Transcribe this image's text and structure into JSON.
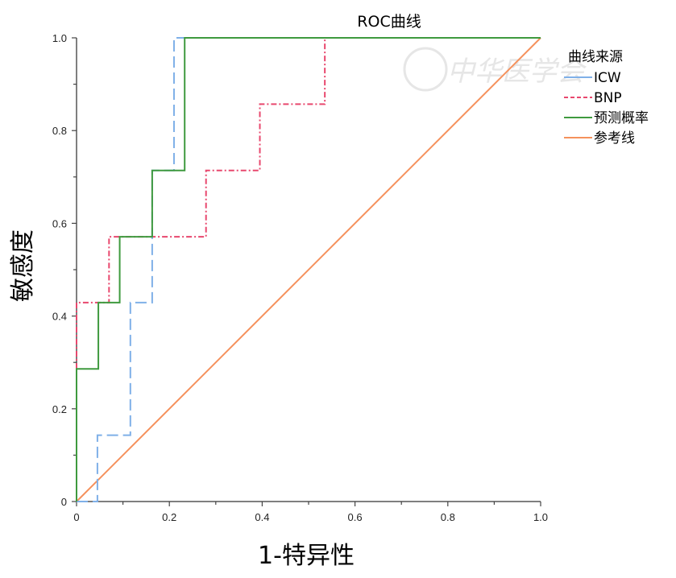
{
  "chart_data": {
    "type": "line",
    "title": "ROC曲线",
    "xlabel": "1-特异性",
    "ylabel": "敏感度",
    "xlim": [
      0,
      1
    ],
    "ylim": [
      0,
      1
    ],
    "xticks": [
      "0",
      "0.2",
      "0.4",
      "0.6",
      "0.8",
      "1.0"
    ],
    "yticks": [
      "0",
      "0.2",
      "0.4",
      "0.6",
      "0.8",
      "1.0"
    ],
    "grid": false,
    "legend": {
      "title": "曲线来源",
      "placement": "right"
    },
    "watermark": "中华医学会",
    "series": [
      {
        "name": "ICW",
        "color": "#7fb0e8",
        "dash": "long-dash",
        "points": [
          [
            0,
            0
          ],
          [
            0.045,
            0
          ],
          [
            0.045,
            0.143
          ],
          [
            0.116,
            0.143
          ],
          [
            0.116,
            0.429
          ],
          [
            0.163,
            0.429
          ],
          [
            0.163,
            0.714
          ],
          [
            0.21,
            0.714
          ],
          [
            0.21,
            1
          ],
          [
            1,
            1
          ]
        ]
      },
      {
        "name": "BNP",
        "color": "#e8486e",
        "dash": "dash-dot",
        "points": [
          [
            0,
            0
          ],
          [
            0,
            0.429
          ],
          [
            0.07,
            0.429
          ],
          [
            0.07,
            0.571
          ],
          [
            0.279,
            0.571
          ],
          [
            0.279,
            0.714
          ],
          [
            0.395,
            0.714
          ],
          [
            0.395,
            0.857
          ],
          [
            0.535,
            0.857
          ],
          [
            0.535,
            1
          ],
          [
            1,
            1
          ]
        ]
      },
      {
        "name": "预测概率",
        "color": "#3f9a3f",
        "dash": "solid",
        "points": [
          [
            0,
            0
          ],
          [
            0,
            0.286
          ],
          [
            0.047,
            0.286
          ],
          [
            0.047,
            0.429
          ],
          [
            0.093,
            0.429
          ],
          [
            0.093,
            0.571
          ],
          [
            0.163,
            0.571
          ],
          [
            0.163,
            0.714
          ],
          [
            0.233,
            0.714
          ],
          [
            0.233,
            1
          ],
          [
            1,
            1
          ]
        ]
      },
      {
        "name": "参考线",
        "color": "#f5915c",
        "dash": "solid",
        "points": [
          [
            0,
            0
          ],
          [
            1,
            1
          ]
        ]
      }
    ]
  }
}
